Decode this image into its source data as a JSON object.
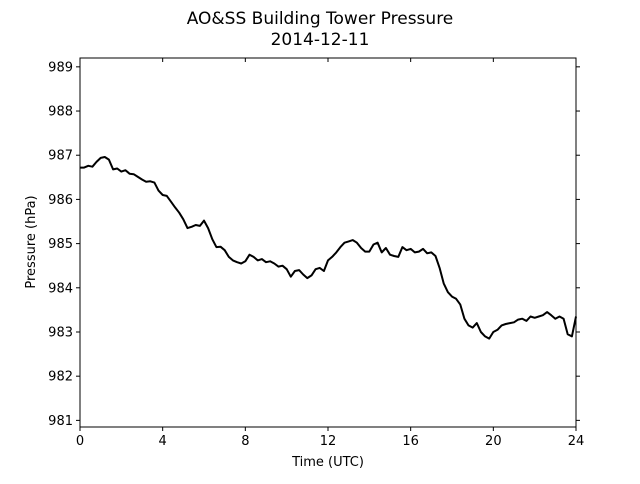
{
  "chart_data": {
    "type": "line",
    "title": "AO&SS Building Tower Pressure",
    "subtitle": "2014-12-11",
    "xlabel": "Time (UTC)",
    "ylabel": "Pressure (hPa)",
    "xlim": [
      0,
      24
    ],
    "ylim": [
      980.85,
      989.2
    ],
    "xticks": [
      0,
      4,
      8,
      12,
      16,
      20,
      24
    ],
    "yticks": [
      981,
      982,
      983,
      984,
      985,
      986,
      987,
      988,
      989
    ],
    "grid": false,
    "legend": "none",
    "series": [
      {
        "color": "#000000",
        "x": [
          0.0,
          0.2,
          0.4,
          0.6,
          0.8,
          1.0,
          1.2,
          1.4,
          1.6,
          1.8,
          2.0,
          2.2,
          2.4,
          2.6,
          2.8,
          3.0,
          3.2,
          3.4,
          3.6,
          3.8,
          4.0,
          4.2,
          4.4,
          4.6,
          4.8,
          5.0,
          5.2,
          5.4,
          5.6,
          5.8,
          6.0,
          6.2,
          6.4,
          6.6,
          6.8,
          7.0,
          7.2,
          7.4,
          7.6,
          7.8,
          8.0,
          8.2,
          8.4,
          8.6,
          8.8,
          9.0,
          9.2,
          9.4,
          9.6,
          9.8,
          10.0,
          10.2,
          10.4,
          10.6,
          10.8,
          11.0,
          11.2,
          11.4,
          11.6,
          11.8,
          12.0,
          12.2,
          12.4,
          12.6,
          12.8,
          13.0,
          13.2,
          13.4,
          13.6,
          13.8,
          14.0,
          14.2,
          14.4,
          14.6,
          14.8,
          15.0,
          15.2,
          15.4,
          15.6,
          15.8,
          16.0,
          16.2,
          16.4,
          16.6,
          16.8,
          17.0,
          17.2,
          17.4,
          17.6,
          17.8,
          18.0,
          18.2,
          18.4,
          18.6,
          18.8,
          19.0,
          19.2,
          19.4,
          19.6,
          19.8,
          20.0,
          20.2,
          20.4,
          20.6,
          20.8,
          21.0,
          21.2,
          21.4,
          21.6,
          21.8,
          22.0,
          22.2,
          22.4,
          22.6,
          22.8,
          23.0,
          23.2,
          23.4,
          23.6,
          23.8,
          24.0
        ],
        "values": [
          986.72,
          986.72,
          986.76,
          986.74,
          986.85,
          986.94,
          986.96,
          986.9,
          986.68,
          986.7,
          986.63,
          986.66,
          986.58,
          986.57,
          986.51,
          986.45,
          986.4,
          986.41,
          986.38,
          986.2,
          986.1,
          986.08,
          985.95,
          985.82,
          985.7,
          985.55,
          985.35,
          985.38,
          985.42,
          985.4,
          985.52,
          985.35,
          985.1,
          984.92,
          984.93,
          984.85,
          984.7,
          984.62,
          984.58,
          984.55,
          984.6,
          984.75,
          984.7,
          984.62,
          984.65,
          984.58,
          984.6,
          984.55,
          984.48,
          984.5,
          984.42,
          984.25,
          984.38,
          984.4,
          984.3,
          984.22,
          984.28,
          984.42,
          984.45,
          984.38,
          984.62,
          984.7,
          984.8,
          984.92,
          985.02,
          985.05,
          985.08,
          985.02,
          984.9,
          984.82,
          984.82,
          984.98,
          985.02,
          984.8,
          984.9,
          984.75,
          984.72,
          984.7,
          984.92,
          984.85,
          984.88,
          984.8,
          984.82,
          984.88,
          984.78,
          984.8,
          984.72,
          984.45,
          984.1,
          983.9,
          983.8,
          983.75,
          983.62,
          983.3,
          983.15,
          983.1,
          983.2,
          983.0,
          982.9,
          982.85,
          983.0,
          983.05,
          983.15,
          983.18,
          983.2,
          983.22,
          983.28,
          983.3,
          983.25,
          983.35,
          983.32,
          983.35,
          983.38,
          983.45,
          983.38,
          983.3,
          983.35,
          983.3,
          982.95,
          982.9,
          983.35
        ]
      }
    ]
  }
}
